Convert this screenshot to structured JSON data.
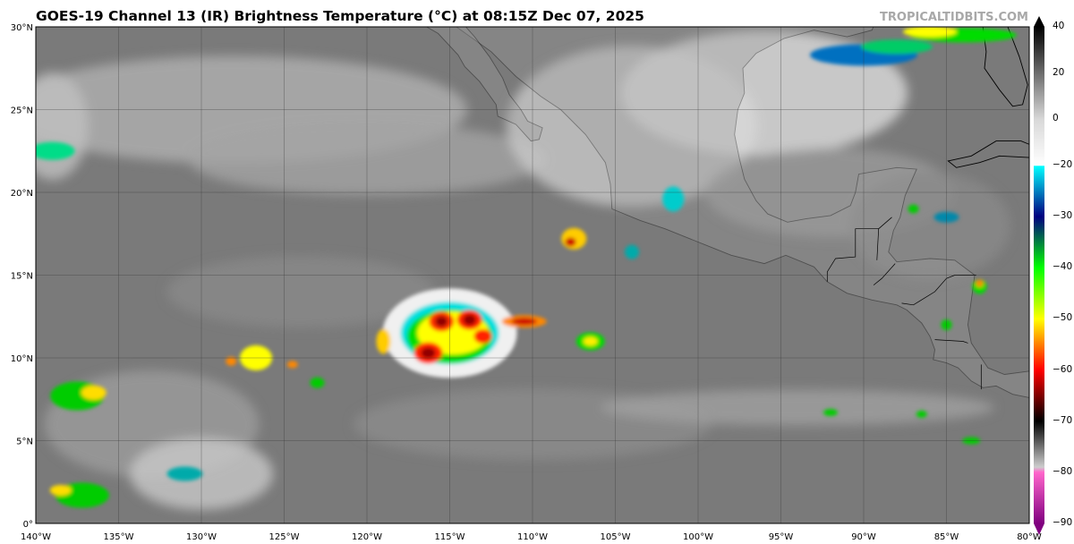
{
  "title": "GOES-19 Channel 13 (IR) Brightness Temperature (°C) at 08:15Z Dec 07, 2025",
  "watermark": "TROPICALTIDBITS.COM",
  "map": {
    "lon_range": [
      -140,
      -80
    ],
    "lat_range": [
      0,
      30
    ],
    "grid_step_deg": 5,
    "lat_labels": [
      "0°",
      "5°N",
      "10°N",
      "15°N",
      "20°N",
      "25°N",
      "30°N"
    ],
    "lon_labels": [
      "140°W",
      "135°W",
      "130°W",
      "125°W",
      "120°W",
      "115°W",
      "110°W",
      "105°W",
      "100°W",
      "95°W",
      "90°W",
      "85°W",
      "80°W"
    ]
  },
  "colorbar": {
    "tick_labels": [
      "40",
      "20",
      "0",
      "−20",
      "−30",
      "−40",
      "−50",
      "−60",
      "−70",
      "−80",
      "−90"
    ],
    "tick_values": [
      40,
      20,
      0,
      -20,
      -30,
      -40,
      -50,
      -60,
      -70,
      -80,
      -90
    ],
    "range": [
      -90,
      40
    ],
    "stops": [
      {
        "t": 40,
        "color": "#000000"
      },
      {
        "t": 0,
        "color": "#d8d8d8"
      },
      {
        "t": -20,
        "color": "#ffffff"
      },
      {
        "t": -20.1,
        "color": "#00ffff"
      },
      {
        "t": -30,
        "color": "#000080"
      },
      {
        "t": -40,
        "color": "#00ff00"
      },
      {
        "t": -50,
        "color": "#ffff00"
      },
      {
        "t": -60,
        "color": "#ff0000"
      },
      {
        "t": -70,
        "color": "#000000"
      },
      {
        "t": -79,
        "color": "#cccccc"
      },
      {
        "t": -80,
        "color": "#ff66cc"
      },
      {
        "t": -90,
        "color": "#800080"
      }
    ]
  }
}
